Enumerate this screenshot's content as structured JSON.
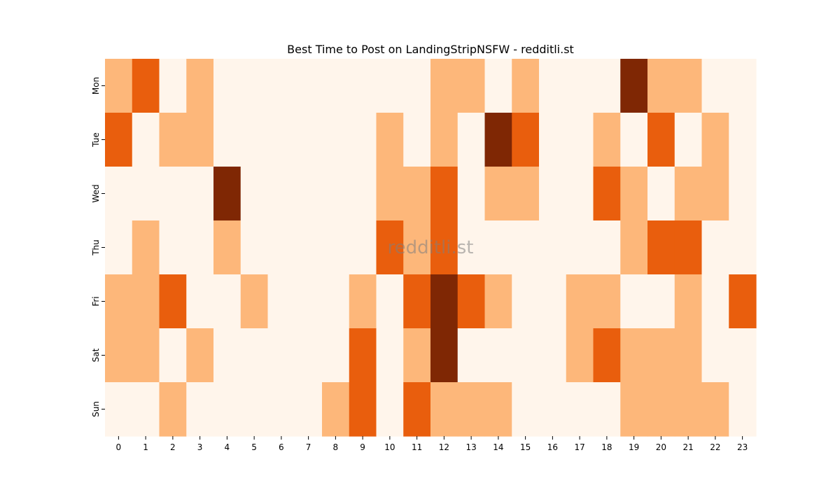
{
  "chart_data": {
    "type": "heatmap",
    "title": "Best Time to Post on LandingStripNSFW - redditli.st",
    "watermark": "redditli.st",
    "xlabel": "",
    "ylabel": "",
    "x": [
      "0",
      "1",
      "2",
      "3",
      "4",
      "5",
      "6",
      "7",
      "8",
      "9",
      "10",
      "11",
      "12",
      "13",
      "14",
      "15",
      "16",
      "17",
      "18",
      "19",
      "20",
      "21",
      "22",
      "23"
    ],
    "y": [
      "Mon",
      "Tue",
      "Wed",
      "Thu",
      "Fri",
      "Sat",
      "Sun"
    ],
    "legend": "none",
    "colormap": "Oranges",
    "levels": {
      "0": "#fff5eb",
      "1": "#fdb77a",
      "2": "#e95e0d",
      "3": "#7f2704"
    },
    "values": [
      [
        1,
        2,
        0,
        1,
        0,
        0,
        0,
        0,
        0,
        0,
        0,
        0,
        1,
        1,
        0,
        1,
        0,
        0,
        0,
        3,
        1,
        1,
        0,
        0
      ],
      [
        2,
        0,
        1,
        1,
        0,
        0,
        0,
        0,
        0,
        0,
        1,
        0,
        1,
        0,
        3,
        2,
        0,
        0,
        1,
        0,
        2,
        0,
        1,
        0
      ],
      [
        0,
        0,
        0,
        0,
        3,
        0,
        0,
        0,
        0,
        0,
        1,
        1,
        2,
        0,
        1,
        1,
        0,
        0,
        2,
        1,
        0,
        1,
        1,
        0
      ],
      [
        0,
        1,
        0,
        0,
        1,
        0,
        0,
        0,
        0,
        0,
        2,
        1,
        2,
        0,
        0,
        0,
        0,
        0,
        0,
        1,
        2,
        2,
        0,
        0
      ],
      [
        1,
        1,
        2,
        0,
        0,
        1,
        0,
        0,
        0,
        1,
        0,
        2,
        3,
        2,
        1,
        0,
        0,
        1,
        1,
        0,
        0,
        1,
        0,
        2
      ],
      [
        1,
        1,
        0,
        1,
        0,
        0,
        0,
        0,
        0,
        2,
        0,
        1,
        3,
        0,
        0,
        0,
        0,
        1,
        2,
        1,
        1,
        1,
        0,
        0
      ],
      [
        0,
        0,
        1,
        0,
        0,
        0,
        0,
        0,
        1,
        2,
        0,
        2,
        1,
        1,
        1,
        0,
        0,
        0,
        0,
        1,
        1,
        1,
        1,
        0
      ]
    ]
  }
}
